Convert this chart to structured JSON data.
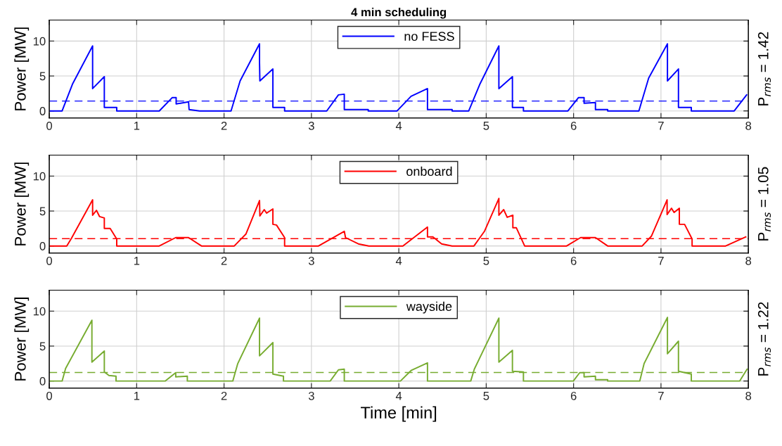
{
  "chart_data": [
    {
      "type": "line",
      "title": "4 min scheduling",
      "ylabel": "Power [MW]",
      "y2label": "P$_{rms}$ = 1.42",
      "xlim": [
        0,
        8
      ],
      "xticks": [
        0,
        1,
        2,
        3,
        4,
        5,
        6,
        7,
        8
      ],
      "ylim": [
        -1,
        13
      ],
      "yticks": [
        0,
        5,
        10
      ],
      "grid": true,
      "legend": "top",
      "line_style": "solid",
      "series": [
        {
          "name": "no FESS",
          "color": "#0000ff",
          "x": [
            0,
            0.147,
            0.268,
            0.496,
            0.496,
            0.63,
            0.63,
            0.772,
            0.772,
            1.259,
            1.406,
            1.452,
            1.452,
            1.594,
            1.6,
            1.72,
            2.08,
            2.184,
            2.406,
            2.406,
            2.41,
            2.559,
            2.559,
            2.693,
            2.693,
            3.175,
            3.309,
            3.376,
            3.376,
            3.65,
            3.65,
            3.98,
            4.14,
            4.328,
            4.328,
            4.61,
            4.61,
            4.8,
            4.93,
            5.145,
            5.145,
            5.3,
            5.3,
            5.426,
            5.426,
            5.935,
            6.055,
            6.12,
            6.12,
            6.25,
            6.25,
            6.39,
            6.39,
            6.747,
            6.859,
            7.074,
            7.074,
            7.2,
            7.2,
            7.347,
            7.347,
            7.838,
            7.98
          ],
          "values": [
            0,
            0,
            3.9,
            9.3,
            3.2,
            4.9,
            0.5,
            0.5,
            0,
            0,
            1.9,
            1.9,
            1.0,
            1.3,
            0.2,
            0,
            0,
            4.3,
            9.6,
            6.9,
            4.3,
            6.0,
            0.5,
            0.5,
            0,
            0,
            2.3,
            2.4,
            0.2,
            0.2,
            0,
            0,
            2.1,
            3.2,
            0.2,
            0.2,
            0,
            0,
            3.9,
            9.3,
            3.2,
            4.9,
            0.5,
            0.5,
            0,
            0,
            1.9,
            1.9,
            1.1,
            1.2,
            0.2,
            0.2,
            0,
            0,
            4.7,
            9.6,
            4.3,
            6.0,
            0.5,
            0.5,
            0,
            0,
            2.3
          ]
        }
      ],
      "ref_lines": [
        {
          "axis": "y",
          "value": 1.42,
          "color": "#0000ff",
          "line_style": "dashed"
        }
      ]
    },
    {
      "type": "line",
      "ylabel": "Power [MW]",
      "y2label": "P$_{rms}$ = 1.05",
      "xlim": [
        0,
        8
      ],
      "xticks": [
        0,
        1,
        2,
        3,
        4,
        5,
        6,
        7,
        8
      ],
      "ylim": [
        -1,
        13
      ],
      "yticks": [
        0,
        5,
        10
      ],
      "grid": true,
      "legend": "top",
      "line_style": "solid",
      "series": [
        {
          "name": "onboard",
          "color": "#ff0000",
          "x": [
            0,
            0.2,
            0.254,
            0.496,
            0.496,
            0.54,
            0.576,
            0.63,
            0.63,
            0.697,
            0.772,
            0.772,
            1.259,
            1.447,
            1.594,
            1.742,
            2.117,
            2.25,
            2.406,
            2.41,
            2.46,
            2.487,
            2.559,
            2.559,
            2.6,
            2.693,
            2.693,
            3.081,
            3.376,
            3.39,
            3.537,
            3.657,
            4.006,
            4.046,
            4.328,
            4.328,
            4.39,
            4.49,
            4.61,
            4.86,
            4.98,
            5.145,
            5.145,
            5.2,
            5.24,
            5.305,
            5.305,
            5.345,
            5.44,
            5.92,
            6.08,
            6.25,
            6.39,
            6.785,
            6.89,
            7.07,
            7.07,
            7.12,
            7.15,
            7.21,
            7.21,
            7.27,
            7.356,
            7.356,
            7.74,
            7.97
          ],
          "values": [
            0,
            0,
            1.1,
            6.6,
            4.4,
            5.1,
            4.2,
            4.0,
            2.5,
            2.5,
            1.0,
            0,
            0,
            1.2,
            1.2,
            0,
            0,
            1.7,
            6.5,
            4.3,
            5.2,
            4.7,
            5.3,
            3.1,
            3.0,
            1.2,
            0,
            0,
            2.1,
            1.2,
            0.3,
            0,
            0,
            0,
            2.7,
            1.3,
            1.3,
            0.3,
            0,
            0,
            2.1,
            6.8,
            4.4,
            5.2,
            4.1,
            4.4,
            2.6,
            2.6,
            0,
            0,
            1.2,
            1.2,
            0,
            0,
            1.4,
            6.6,
            4.5,
            5.4,
            4.8,
            5.4,
            3.1,
            3.1,
            1.0,
            0,
            0,
            1.3
          ]
        }
      ],
      "ref_lines": [
        {
          "axis": "y",
          "value": 1.05,
          "color": "#ff0000",
          "line_style": "dashed"
        }
      ]
    },
    {
      "type": "line",
      "xlabel": "Time [min]",
      "ylabel": "Power [MW]",
      "y2label": "P$_{rms}$ = 1.22",
      "xlim": [
        0,
        8
      ],
      "xticks": [
        0,
        1,
        2,
        3,
        4,
        5,
        6,
        7,
        8
      ],
      "ylim": [
        -1,
        13
      ],
      "yticks": [
        0,
        5,
        10
      ],
      "grid": true,
      "legend": "top",
      "line_style": "solid",
      "series": [
        {
          "name": "wayside",
          "color": "#77ac30",
          "x": [
            0,
            0.147,
            0.187,
            0.488,
            0.488,
            0.63,
            0.63,
            0.683,
            0.764,
            0.764,
            1.326,
            1.447,
            1.447,
            1.58,
            1.58,
            2.1,
            2.157,
            2.406,
            2.406,
            2.559,
            2.559,
            2.68,
            2.68,
            3.215,
            3.309,
            3.376,
            3.376,
            4.019,
            4.14,
            4.328,
            4.328,
            4.823,
            4.864,
            5.145,
            5.145,
            5.3,
            5.3,
            5.426,
            5.426,
            5.997,
            6.07,
            6.12,
            6.12,
            6.25,
            6.25,
            6.39,
            6.39,
            6.757,
            6.807,
            7.074,
            7.074,
            7.2,
            7.2,
            7.347,
            7.347,
            7.9,
            7.985
          ],
          "values": [
            0,
            0,
            1.8,
            8.7,
            2.7,
            4.3,
            1.3,
            0.8,
            0.7,
            0,
            0,
            1.2,
            0.6,
            0.7,
            0,
            0,
            2.5,
            9.0,
            3.6,
            5.5,
            1.0,
            0.7,
            0,
            0,
            1.6,
            1.7,
            0,
            0,
            1.5,
            2.6,
            0,
            0,
            1.7,
            9.0,
            2.7,
            4.4,
            1.4,
            1.3,
            0,
            0,
            1.2,
            1.2,
            0.6,
            0.7,
            0.2,
            0.2,
            0,
            0,
            2.5,
            9.1,
            3.9,
            5.7,
            1.4,
            1.0,
            0,
            0,
            1.7
          ]
        }
      ],
      "ref_lines": [
        {
          "axis": "y",
          "value": 1.22,
          "color": "#77ac30",
          "line_style": "dashed"
        }
      ]
    }
  ]
}
